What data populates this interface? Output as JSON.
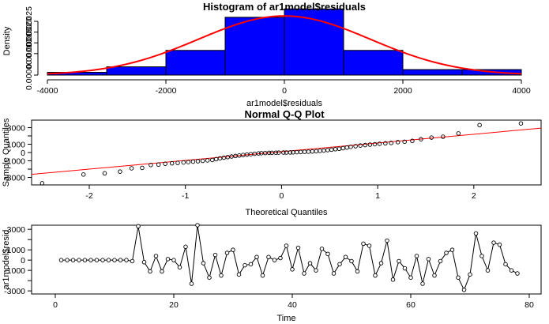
{
  "chart_data": [
    {
      "type": "bar",
      "title": "Histogram of ar1model$residuals",
      "xlabel": "ar1model$residuals",
      "ylabel": "Density",
      "xlim": [
        -4000,
        4000
      ],
      "ylim": [
        0,
        0.00032
      ],
      "xticks": [
        "-4000",
        "-2000",
        "0",
        "2000",
        "4000"
      ],
      "yticks": [
        "0.00000",
        "0.00010",
        "0.00015",
        "0.00020",
        "0.00025"
      ],
      "yticks_values": [
        0,
        0.0001,
        0.00015,
        0.0002,
        0.00025
      ],
      "bins": [
        {
          "from": -4000,
          "to": -3000,
          "density": 1.28e-05
        },
        {
          "from": -3000,
          "to": -2000,
          "density": 3.85e-05
        },
        {
          "from": -2000,
          "to": -1000,
          "density": 0.000115
        },
        {
          "from": -1000,
          "to": 0,
          "density": 0.000269
        },
        {
          "from": 0,
          "to": 1000,
          "density": 0.000308
        },
        {
          "from": 1000,
          "to": 2000,
          "density": 0.000115
        },
        {
          "from": 2000,
          "to": 3000,
          "density": 2.56e-05
        },
        {
          "from": 3000,
          "to": 4000,
          "density": 2.56e-05
        }
      ],
      "density_curve": {
        "mean": 0,
        "sd": 1450
      },
      "bar_color": "#0000ff",
      "curve_color": "#ff0000"
    },
    {
      "type": "scatter",
      "title": "Normal Q-Q Plot",
      "xlabel": "Theoretical Quantiles",
      "ylabel": "Sample Quantiles",
      "xlim": [
        -2.6,
        2.7
      ],
      "ylim": [
        -3900,
        3900
      ],
      "xticks": [
        "-2",
        "-1",
        "0",
        "1",
        "2"
      ],
      "xticks_values": [
        -2,
        -1,
        0,
        1,
        2
      ],
      "yticks": [
        "-3000",
        "-1000",
        "0",
        "1000",
        "3000"
      ],
      "yticks_values": [
        -3000,
        -2000,
        -1000,
        0,
        1000,
        2000,
        3000
      ],
      "qqline": {
        "intercept": 100,
        "slope": 1050,
        "color": "#ff0000"
      },
      "points": [
        [
          -2.49,
          -3700
        ],
        [
          -2.06,
          -2650
        ],
        [
          -1.84,
          -2500
        ],
        [
          -1.68,
          -2300
        ],
        [
          -1.56,
          -1900
        ],
        [
          -1.45,
          -1850
        ],
        [
          -1.36,
          -1500
        ],
        [
          -1.28,
          -1450
        ],
        [
          -1.21,
          -1350
        ],
        [
          -1.14,
          -1300
        ],
        [
          -1.08,
          -1250
        ],
        [
          -1.02,
          -1200
        ],
        [
          -0.97,
          -1150
        ],
        [
          -0.92,
          -1100
        ],
        [
          -0.87,
          -1050
        ],
        [
          -0.82,
          -1000
        ],
        [
          -0.77,
          -950
        ],
        [
          -0.72,
          -900
        ],
        [
          -0.68,
          -800
        ],
        [
          -0.64,
          -700
        ],
        [
          -0.6,
          -620
        ],
        [
          -0.56,
          -550
        ],
        [
          -0.52,
          -480
        ],
        [
          -0.48,
          -420
        ],
        [
          -0.44,
          -360
        ],
        [
          -0.4,
          -300
        ],
        [
          -0.36,
          -250
        ],
        [
          -0.32,
          -200
        ],
        [
          -0.28,
          -150
        ],
        [
          -0.24,
          -110
        ],
        [
          -0.21,
          -80
        ],
        [
          -0.17,
          -60
        ],
        [
          -0.13,
          -40
        ],
        [
          -0.1,
          -30
        ],
        [
          -0.06,
          -20
        ],
        [
          -0.03,
          -10
        ],
        [
          0.02,
          0
        ],
        [
          0.05,
          0
        ],
        [
          0.09,
          10
        ],
        [
          0.12,
          20
        ],
        [
          0.16,
          40
        ],
        [
          0.2,
          60
        ],
        [
          0.24,
          80
        ],
        [
          0.28,
          100
        ],
        [
          0.32,
          130
        ],
        [
          0.36,
          160
        ],
        [
          0.4,
          200
        ],
        [
          0.44,
          240
        ],
        [
          0.48,
          290
        ],
        [
          0.52,
          340
        ],
        [
          0.56,
          400
        ],
        [
          0.6,
          450
        ],
        [
          0.64,
          520
        ],
        [
          0.68,
          600
        ],
        [
          0.72,
          680
        ],
        [
          0.77,
          760
        ],
        [
          0.82,
          840
        ],
        [
          0.87,
          900
        ],
        [
          0.92,
          950
        ],
        [
          0.97,
          1000
        ],
        [
          1.02,
          1050
        ],
        [
          1.08,
          1100
        ],
        [
          1.14,
          1150
        ],
        [
          1.21,
          1250
        ],
        [
          1.28,
          1300
        ],
        [
          1.36,
          1400
        ],
        [
          1.45,
          1600
        ],
        [
          1.56,
          1800
        ],
        [
          1.68,
          1900
        ],
        [
          1.84,
          2300
        ],
        [
          2.06,
          3300
        ],
        [
          2.49,
          3500
        ]
      ],
      "point_color": "#000000"
    },
    {
      "type": "line",
      "xlabel": "Time",
      "ylabel": "ar1model$resid",
      "xlim": [
        0,
        80
      ],
      "ylim": [
        -3300,
        3400
      ],
      "xticks": [
        "0",
        "20",
        "40",
        "60",
        "80"
      ],
      "xticks_values": [
        0,
        20,
        40,
        60,
        80
      ],
      "yticks": [
        "-3000",
        "-1000",
        "0",
        "1000",
        "3000"
      ],
      "yticks_values": [
        -3000,
        -2000,
        -1000,
        0,
        1000,
        2000,
        3000
      ],
      "x": [
        1,
        2,
        3,
        4,
        5,
        6,
        7,
        8,
        9,
        10,
        11,
        12,
        13,
        14,
        15,
        16,
        17,
        18,
        19,
        20,
        21,
        22,
        23,
        24,
        25,
        26,
        27,
        28,
        29,
        30,
        31,
        32,
        33,
        34,
        35,
        36,
        37,
        38,
        39,
        40,
        41,
        42,
        43,
        44,
        45,
        46,
        47,
        48,
        49,
        50,
        51,
        52,
        53,
        54,
        55,
        56,
        57,
        58,
        59,
        60,
        61,
        62,
        63,
        64,
        65,
        66,
        67,
        68,
        69,
        70,
        71,
        72,
        73,
        74,
        75,
        76,
        77,
        78
      ],
      "y": [
        0,
        0,
        0,
        0,
        0,
        0,
        0,
        0,
        0,
        0,
        0,
        0,
        -100,
        3300,
        -200,
        -1100,
        400,
        -1100,
        100,
        0,
        -700,
        1300,
        -2300,
        3400,
        -300,
        -1700,
        500,
        -1500,
        700,
        1000,
        -1400,
        -500,
        -400,
        300,
        -1500,
        300,
        0,
        200,
        1400,
        -900,
        1200,
        -1300,
        -300,
        -1000,
        1100,
        600,
        -1300,
        -400,
        300,
        -100,
        -1100,
        1600,
        1400,
        -1500,
        -300,
        1900,
        -1900,
        -100,
        -800,
        -1700,
        400,
        -2300,
        100,
        -1500,
        -100,
        700,
        1000,
        -1700,
        -2900,
        -1400,
        2600,
        400,
        -1000,
        1700,
        1500,
        -400,
        -1000,
        -1300
      ],
      "x_data": [
        1,
        2,
        3,
        4,
        5,
        6,
        7,
        8,
        9,
        10,
        11,
        12,
        13,
        14,
        15,
        16,
        17,
        18,
        19,
        20,
        21,
        22,
        23,
        24,
        25,
        26,
        27,
        28,
        29,
        30,
        31,
        32,
        33,
        34,
        35,
        36,
        37,
        38,
        39,
        40,
        41,
        42,
        43,
        44,
        45,
        46,
        47,
        48,
        49,
        50,
        51,
        52,
        53,
        54,
        55,
        56,
        57,
        58,
        59,
        60,
        61,
        62,
        63,
        64,
        65,
        66,
        67,
        68,
        69,
        70,
        71,
        72,
        73,
        74,
        75,
        76,
        77,
        78
      ],
      "values": [
        0,
        0,
        0,
        0,
        0,
        0,
        0,
        0,
        0,
        0,
        0,
        0,
        -100,
        3300,
        -200,
        -1100,
        400,
        -1100,
        100,
        0,
        -700,
        1300,
        -2300,
        3400,
        -300,
        -1700,
        500,
        -1500,
        700,
        1000,
        -1400,
        -500,
        -400,
        300,
        -1500,
        300,
        0,
        200,
        1400,
        -900,
        1200,
        -1300,
        -300,
        -1000,
        1100,
        600,
        -1300,
        -400,
        300,
        -100,
        -1100,
        1600,
        1400,
        -1500,
        -300,
        1900,
        -1900,
        -100,
        -800,
        -1700,
        400,
        -2300,
        100,
        -1500,
        -100,
        700,
        1000,
        -1700,
        -2900,
        -1400,
        2600,
        400,
        -1000,
        1700,
        1500,
        -400,
        -1000,
        -1300
      ]
    }
  ]
}
